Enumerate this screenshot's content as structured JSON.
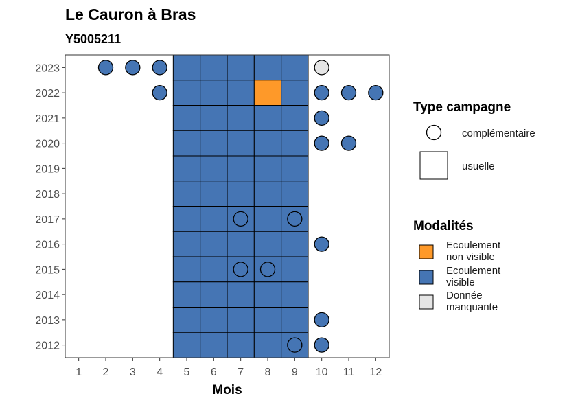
{
  "chart_data": {
    "type": "heatmap",
    "title": "Le Cauron à Bras",
    "subtitle": "Y5005211",
    "xlabel": "Mois",
    "ylabel": "",
    "x_ticks": [
      1,
      2,
      3,
      4,
      5,
      6,
      7,
      8,
      9,
      10,
      11,
      12
    ],
    "y_ticks": [
      2012,
      2013,
      2014,
      2015,
      2016,
      2017,
      2018,
      2019,
      2020,
      2021,
      2022,
      2023
    ],
    "xlim": [
      0.5,
      12.5
    ],
    "ylim": [
      2011.5,
      2023.5
    ],
    "grid": false,
    "legend_position": "right",
    "colors": {
      "Ecoulement non visible": "#FE9929",
      "Ecoulement visible": "#4575B4",
      "Donnée manquante": "#E5E5E5"
    },
    "points": [
      {
        "year": 2023,
        "month": 2,
        "shape": "circle",
        "modalite": "Ecoulement visible"
      },
      {
        "year": 2023,
        "month": 3,
        "shape": "circle",
        "modalite": "Ecoulement visible"
      },
      {
        "year": 2023,
        "month": 4,
        "shape": "circle",
        "modalite": "Ecoulement visible"
      },
      {
        "year": 2023,
        "month": 5,
        "shape": "square",
        "modalite": "Ecoulement visible"
      },
      {
        "year": 2023,
        "month": 6,
        "shape": "square",
        "modalite": "Ecoulement visible"
      },
      {
        "year": 2023,
        "month": 7,
        "shape": "square",
        "modalite": "Ecoulement visible"
      },
      {
        "year": 2023,
        "month": 8,
        "shape": "square",
        "modalite": "Ecoulement visible"
      },
      {
        "year": 2023,
        "month": 9,
        "shape": "square",
        "modalite": "Ecoulement visible"
      },
      {
        "year": 2023,
        "month": 10,
        "shape": "circle",
        "modalite": "Donnée manquante"
      },
      {
        "year": 2022,
        "month": 4,
        "shape": "circle",
        "modalite": "Ecoulement visible"
      },
      {
        "year": 2022,
        "month": 5,
        "shape": "square",
        "modalite": "Ecoulement visible"
      },
      {
        "year": 2022,
        "month": 6,
        "shape": "square",
        "modalite": "Ecoulement visible"
      },
      {
        "year": 2022,
        "month": 7,
        "shape": "square",
        "modalite": "Ecoulement visible"
      },
      {
        "year": 2022,
        "month": 8,
        "shape": "square",
        "modalite": "Ecoulement non visible"
      },
      {
        "year": 2022,
        "month": 9,
        "shape": "square",
        "modalite": "Ecoulement visible"
      },
      {
        "year": 2022,
        "month": 10,
        "shape": "circle",
        "modalite": "Ecoulement visible"
      },
      {
        "year": 2022,
        "month": 11,
        "shape": "circle",
        "modalite": "Ecoulement visible"
      },
      {
        "year": 2022,
        "month": 12,
        "shape": "circle",
        "modalite": "Ecoulement visible"
      },
      {
        "year": 2021,
        "month": 5,
        "shape": "square",
        "modalite": "Ecoulement visible"
      },
      {
        "year": 2021,
        "month": 6,
        "shape": "square",
        "modalite": "Ecoulement visible"
      },
      {
        "year": 2021,
        "month": 7,
        "shape": "square",
        "modalite": "Ecoulement visible"
      },
      {
        "year": 2021,
        "month": 8,
        "shape": "square",
        "modalite": "Ecoulement visible"
      },
      {
        "year": 2021,
        "month": 9,
        "shape": "square",
        "modalite": "Ecoulement visible"
      },
      {
        "year": 2021,
        "month": 10,
        "shape": "circle",
        "modalite": "Ecoulement visible"
      },
      {
        "year": 2020,
        "month": 5,
        "shape": "square",
        "modalite": "Ecoulement visible"
      },
      {
        "year": 2020,
        "month": 6,
        "shape": "square",
        "modalite": "Ecoulement visible"
      },
      {
        "year": 2020,
        "month": 7,
        "shape": "square",
        "modalite": "Ecoulement visible"
      },
      {
        "year": 2020,
        "month": 8,
        "shape": "square",
        "modalite": "Ecoulement visible"
      },
      {
        "year": 2020,
        "month": 9,
        "shape": "square",
        "modalite": "Ecoulement visible"
      },
      {
        "year": 2020,
        "month": 10,
        "shape": "circle",
        "modalite": "Ecoulement visible"
      },
      {
        "year": 2020,
        "month": 11,
        "shape": "circle",
        "modalite": "Ecoulement visible"
      },
      {
        "year": 2019,
        "month": 5,
        "shape": "square",
        "modalite": "Ecoulement visible"
      },
      {
        "year": 2019,
        "month": 6,
        "shape": "square",
        "modalite": "Ecoulement visible"
      },
      {
        "year": 2019,
        "month": 7,
        "shape": "square",
        "modalite": "Ecoulement visible"
      },
      {
        "year": 2019,
        "month": 8,
        "shape": "square",
        "modalite": "Ecoulement visible"
      },
      {
        "year": 2019,
        "month": 9,
        "shape": "square",
        "modalite": "Ecoulement visible"
      },
      {
        "year": 2018,
        "month": 5,
        "shape": "square",
        "modalite": "Ecoulement visible"
      },
      {
        "year": 2018,
        "month": 6,
        "shape": "square",
        "modalite": "Ecoulement visible"
      },
      {
        "year": 2018,
        "month": 7,
        "shape": "square",
        "modalite": "Ecoulement visible"
      },
      {
        "year": 2018,
        "month": 8,
        "shape": "square",
        "modalite": "Ecoulement visible"
      },
      {
        "year": 2018,
        "month": 9,
        "shape": "square",
        "modalite": "Ecoulement visible"
      },
      {
        "year": 2017,
        "month": 5,
        "shape": "square",
        "modalite": "Ecoulement visible"
      },
      {
        "year": 2017,
        "month": 6,
        "shape": "square",
        "modalite": "Ecoulement visible"
      },
      {
        "year": 2017,
        "month": 7,
        "shape": "square",
        "modalite": "Ecoulement visible"
      },
      {
        "year": 2017,
        "month": 7,
        "shape": "circle",
        "modalite": "Ecoulement visible"
      },
      {
        "year": 2017,
        "month": 8,
        "shape": "square",
        "modalite": "Ecoulement visible"
      },
      {
        "year": 2017,
        "month": 9,
        "shape": "square",
        "modalite": "Ecoulement visible"
      },
      {
        "year": 2017,
        "month": 9,
        "shape": "circle",
        "modalite": "Ecoulement visible"
      },
      {
        "year": 2016,
        "month": 5,
        "shape": "square",
        "modalite": "Ecoulement visible"
      },
      {
        "year": 2016,
        "month": 6,
        "shape": "square",
        "modalite": "Ecoulement visible"
      },
      {
        "year": 2016,
        "month": 7,
        "shape": "square",
        "modalite": "Ecoulement visible"
      },
      {
        "year": 2016,
        "month": 8,
        "shape": "square",
        "modalite": "Ecoulement visible"
      },
      {
        "year": 2016,
        "month": 9,
        "shape": "square",
        "modalite": "Ecoulement visible"
      },
      {
        "year": 2016,
        "month": 10,
        "shape": "circle",
        "modalite": "Ecoulement visible"
      },
      {
        "year": 2015,
        "month": 5,
        "shape": "square",
        "modalite": "Ecoulement visible"
      },
      {
        "year": 2015,
        "month": 6,
        "shape": "square",
        "modalite": "Ecoulement visible"
      },
      {
        "year": 2015,
        "month": 7,
        "shape": "square",
        "modalite": "Ecoulement visible"
      },
      {
        "year": 2015,
        "month": 7,
        "shape": "circle",
        "modalite": "Ecoulement visible"
      },
      {
        "year": 2015,
        "month": 8,
        "shape": "square",
        "modalite": "Ecoulement visible"
      },
      {
        "year": 2015,
        "month": 8,
        "shape": "circle",
        "modalite": "Ecoulement visible"
      },
      {
        "year": 2015,
        "month": 9,
        "shape": "square",
        "modalite": "Ecoulement visible"
      },
      {
        "year": 2014,
        "month": 5,
        "shape": "square",
        "modalite": "Ecoulement visible"
      },
      {
        "year": 2014,
        "month": 6,
        "shape": "square",
        "modalite": "Ecoulement visible"
      },
      {
        "year": 2014,
        "month": 7,
        "shape": "square",
        "modalite": "Ecoulement visible"
      },
      {
        "year": 2014,
        "month": 8,
        "shape": "square",
        "modalite": "Ecoulement visible"
      },
      {
        "year": 2014,
        "month": 9,
        "shape": "square",
        "modalite": "Ecoulement visible"
      },
      {
        "year": 2013,
        "month": 5,
        "shape": "square",
        "modalite": "Ecoulement visible"
      },
      {
        "year": 2013,
        "month": 6,
        "shape": "square",
        "modalite": "Ecoulement visible"
      },
      {
        "year": 2013,
        "month": 7,
        "shape": "square",
        "modalite": "Ecoulement visible"
      },
      {
        "year": 2013,
        "month": 8,
        "shape": "square",
        "modalite": "Ecoulement visible"
      },
      {
        "year": 2013,
        "month": 9,
        "shape": "square",
        "modalite": "Ecoulement visible"
      },
      {
        "year": 2013,
        "month": 10,
        "shape": "circle",
        "modalite": "Ecoulement visible"
      },
      {
        "year": 2012,
        "month": 5,
        "shape": "square",
        "modalite": "Ecoulement visible"
      },
      {
        "year": 2012,
        "month": 6,
        "shape": "square",
        "modalite": "Ecoulement visible"
      },
      {
        "year": 2012,
        "month": 7,
        "shape": "square",
        "modalite": "Ecoulement visible"
      },
      {
        "year": 2012,
        "month": 8,
        "shape": "square",
        "modalite": "Ecoulement visible"
      },
      {
        "year": 2012,
        "month": 9,
        "shape": "square",
        "modalite": "Ecoulement visible"
      },
      {
        "year": 2012,
        "month": 9,
        "shape": "circle",
        "modalite": "Ecoulement visible"
      },
      {
        "year": 2012,
        "month": 10,
        "shape": "circle",
        "modalite": "Ecoulement visible"
      }
    ],
    "legend": {
      "type_campagne": {
        "title": "Type campagne",
        "items": [
          {
            "label": "complémentaire",
            "shape": "circle"
          },
          {
            "label": "usuelle",
            "shape": "square"
          }
        ]
      },
      "modalites": {
        "title": "Modalités",
        "items": [
          {
            "lines": [
              "Ecoulement",
              "non visible"
            ],
            "key": "Ecoulement non visible"
          },
          {
            "lines": [
              "Ecoulement",
              "visible"
            ],
            "key": "Ecoulement visible"
          },
          {
            "lines": [
              "Donnée",
              "manquante"
            ],
            "key": "Donnée manquante"
          }
        ]
      }
    }
  }
}
